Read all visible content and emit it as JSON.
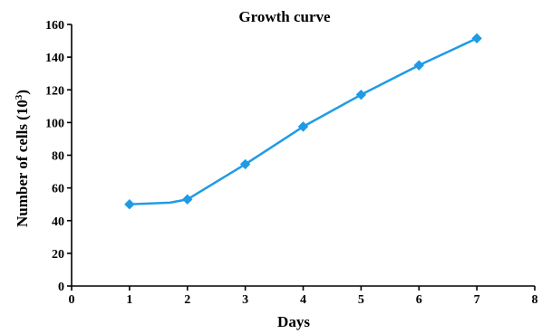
{
  "chart_data": {
    "type": "line",
    "title": "Growth curve",
    "xlabel": "Days",
    "ylabel_main": "Number of cells (10",
    "ylabel_sup": "3",
    "ylabel_end": ")",
    "xlim": [
      0,
      8
    ],
    "ylim": [
      0,
      160
    ],
    "xticks": [
      "0",
      "1",
      "2",
      "3",
      "4",
      "5",
      "6",
      "7",
      "8"
    ],
    "yticks": [
      "0",
      "20",
      "40",
      "60",
      "80",
      "100",
      "120",
      "140",
      "160"
    ],
    "grid": false,
    "series": [
      {
        "color": "#1f9be6",
        "marker": "diamond",
        "markers": [
          {
            "x": 1,
            "y": 50
          },
          {
            "x": 2,
            "y": 53
          },
          {
            "x": 3,
            "y": 74.5
          },
          {
            "x": 4,
            "y": 97.5
          },
          {
            "x": 5,
            "y": 117
          },
          {
            "x": 6,
            "y": 135
          },
          {
            "x": 7,
            "y": 151.5
          }
        ],
        "line": [
          {
            "x": 1,
            "y": 50
          },
          {
            "x": 1.7,
            "y": 51
          },
          {
            "x": 2,
            "y": 53
          },
          {
            "x": 3,
            "y": 74.5
          },
          {
            "x": 4,
            "y": 97.5
          },
          {
            "x": 5,
            "y": 117
          },
          {
            "x": 6,
            "y": 135
          },
          {
            "x": 7,
            "y": 151.5
          }
        ]
      }
    ]
  }
}
